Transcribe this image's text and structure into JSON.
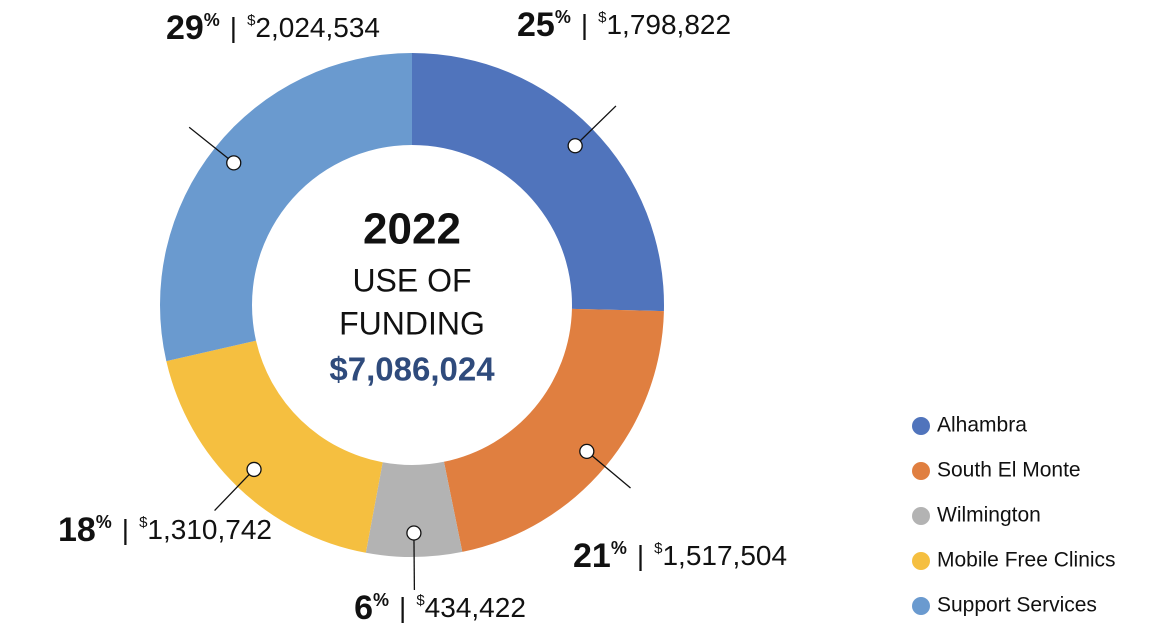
{
  "chart_data": {
    "type": "donut",
    "center_title": "2022",
    "center_subtitle": [
      "USE OF",
      "FUNDING"
    ],
    "total_label": "$7,086,024",
    "categories": [
      "Alhambra",
      "South El Monte",
      "Wilmington",
      "Mobile Free Clinics",
      "Support Services"
    ],
    "values": [
      1798822,
      1517504,
      434422,
      1310742,
      2024534
    ],
    "value_labels": [
      "1,798,822",
      "1,517,504",
      "434,422",
      "1,310,742",
      "2,024,534"
    ],
    "percents": [
      25,
      21,
      6,
      18,
      29
    ],
    "percent_sign": "%",
    "currency_sign": "$",
    "separator": "|",
    "colors": [
      "#5074bc",
      "#e07f40",
      "#b3b3b3",
      "#f5bf40",
      "#6a9acf"
    ],
    "legend": "right"
  }
}
